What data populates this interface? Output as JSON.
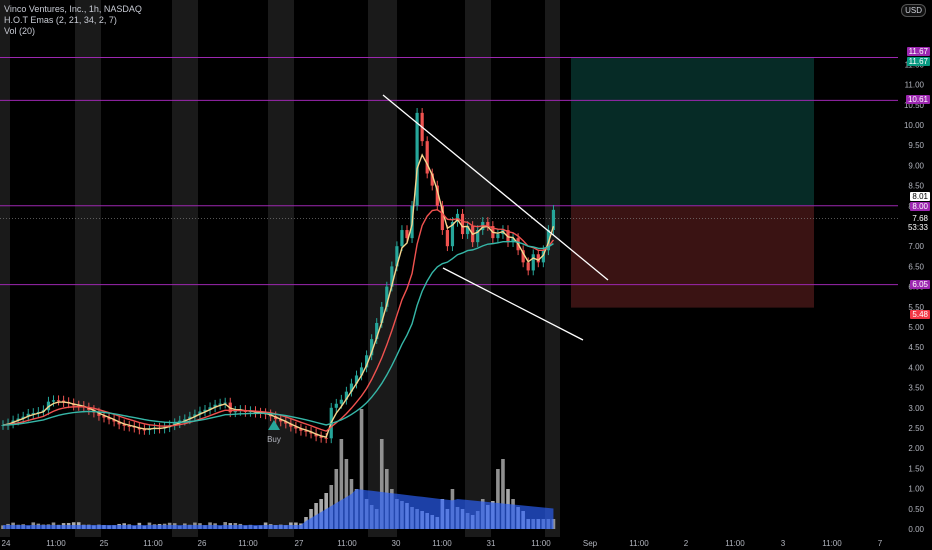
{
  "legend": {
    "symbol": "Vinco Ventures, Inc., 1h, NASDAQ",
    "indicator": "H.O.T Emas (2, 21, 34, 2, 7)",
    "volume": "Vol (20)"
  },
  "currency": "USD",
  "price_axis": [
    "11.50",
    "11.00",
    "10.50",
    "10.00",
    "9.50",
    "9.00",
    "8.50",
    "8.00",
    "7.50",
    "7.00",
    "6.50",
    "6.00",
    "5.50",
    "5.00",
    "4.50",
    "4.00",
    "3.50",
    "3.00",
    "2.50",
    "2.00",
    "1.50",
    "1.00",
    "0.50",
    "0.00"
  ],
  "time_axis": [
    "24",
    "11:00",
    "25",
    "11:00",
    "26",
    "11:00",
    "27",
    "11:00",
    "30",
    "11:00",
    "31",
    "11:00",
    "Sep",
    "11:00",
    "2",
    "11:00",
    "3",
    "11:00",
    "7"
  ],
  "price_tags": [
    {
      "label": "11.67",
      "color": "#9c27b0",
      "text": "#fff"
    },
    {
      "label": "11.67",
      "color": "#089981",
      "text": "#fff"
    },
    {
      "label": "10.61",
      "color": "#9c27b0",
      "text": "#fff"
    },
    {
      "label": "8.01",
      "color": "#ffffff",
      "text": "#000"
    },
    {
      "label": "8.00",
      "color": "#9c27b0",
      "text": "#fff"
    },
    {
      "label": "7.68",
      "color": "#000000",
      "text": "#fff"
    },
    {
      "label": "53:33",
      "color": "#000000",
      "text": "#fff"
    },
    {
      "label": "6.05",
      "color": "#9c27b0",
      "text": "#fff"
    },
    {
      "label": "5.48",
      "color": "#f23645",
      "text": "#fff"
    }
  ],
  "marker": {
    "label": "Buy"
  },
  "colors": {
    "up": "#26a69a",
    "down": "#ef5350",
    "ema_fast": "#f6d68f",
    "ema_mid": "#f0524f",
    "ema_slow": "#36b7a8",
    "volume_up": "#c9c9c9",
    "volume_ma": "#2b62ff",
    "horizontal_line": "#9c27b0"
  }
}
